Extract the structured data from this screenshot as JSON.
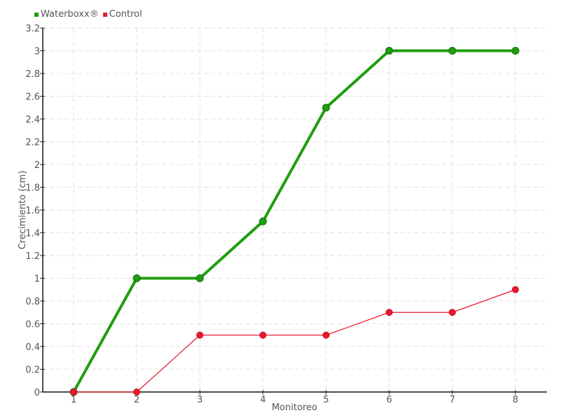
{
  "chart_data": {
    "type": "line",
    "title": "",
    "xlabel": "Monitoreo",
    "ylabel": "Crecimiento (cm)",
    "categories": [
      "1",
      "2",
      "3",
      "4",
      "5",
      "6",
      "7",
      "8"
    ],
    "x": [
      1,
      2,
      3,
      4,
      5,
      6,
      7,
      8
    ],
    "ylim": [
      0,
      3.2
    ],
    "yticks": [
      "0",
      "0.2",
      "0.4",
      "0.6",
      "0.8",
      "1",
      "1.2",
      "1.4",
      "1.6",
      "1.8",
      "2",
      "2.2",
      "2.4",
      "2.6",
      "2.8",
      "3",
      "3.2"
    ],
    "grid": true,
    "legend_position": "top-left",
    "series": [
      {
        "name": "Waterboxx®",
        "color": "#1f9e10",
        "values": [
          0,
          1,
          1,
          1.5,
          2.5,
          3,
          3,
          3
        ]
      },
      {
        "name": "Control",
        "color": "#e8192c",
        "values": [
          0,
          0,
          0.5,
          0.5,
          0.5,
          0.7,
          0.7,
          0.9
        ]
      }
    ]
  }
}
